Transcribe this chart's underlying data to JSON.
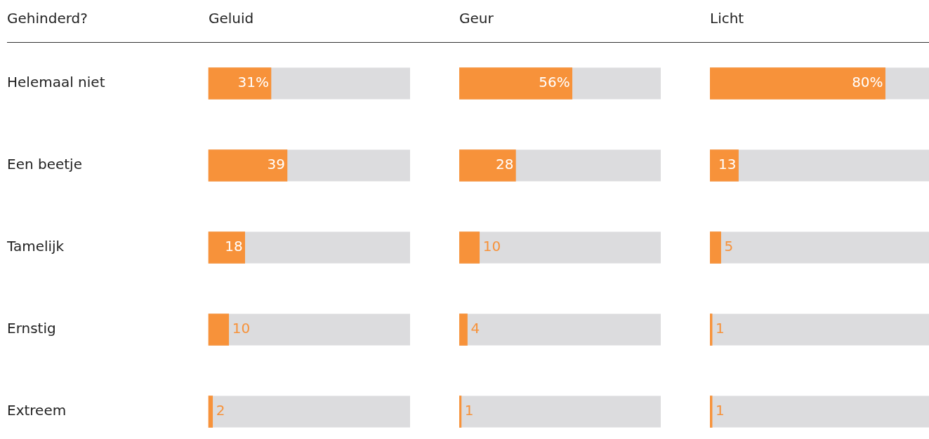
{
  "chart_data": [
    {
      "type": "bar",
      "orientation": "horizontal",
      "title": "Geluid",
      "ylabel": "Gehinderd?",
      "categories": [
        "Helemaal niet",
        "Een beetje",
        "Tamelijk",
        "Ernstig",
        "Extreem"
      ],
      "values": [
        31,
        39,
        18,
        10,
        2
      ],
      "value_labels": [
        "31%",
        "39",
        "18",
        "10",
        "2"
      ],
      "color": "#f7923a",
      "xlim": [
        0,
        100
      ],
      "tick_labels": "y",
      "grid": false,
      "legend": false
    },
    {
      "type": "bar",
      "orientation": "horizontal",
      "title": "Geur",
      "categories": [
        null,
        null,
        null,
        null,
        null
      ],
      "values": [
        56,
        28,
        10,
        4,
        1
      ],
      "value_labels": [
        "56%",
        "28",
        "10",
        "4",
        "1"
      ],
      "color": "#f7923a",
      "xlim": [
        0,
        100
      ],
      "tick_labels": false,
      "grid": false,
      "legend": false
    },
    {
      "type": "bar",
      "orientation": "horizontal",
      "title": "Licht",
      "categories": [
        null,
        null,
        null,
        null,
        null
      ],
      "values": [
        80,
        13,
        5,
        1,
        1
      ],
      "value_labels": [
        "80%",
        "13",
        "5",
        "1",
        "1"
      ],
      "color": "#f7923a",
      "xlim": [
        0,
        100
      ],
      "tick_labels": false,
      "grid": false,
      "legend": false
    }
  ]
}
